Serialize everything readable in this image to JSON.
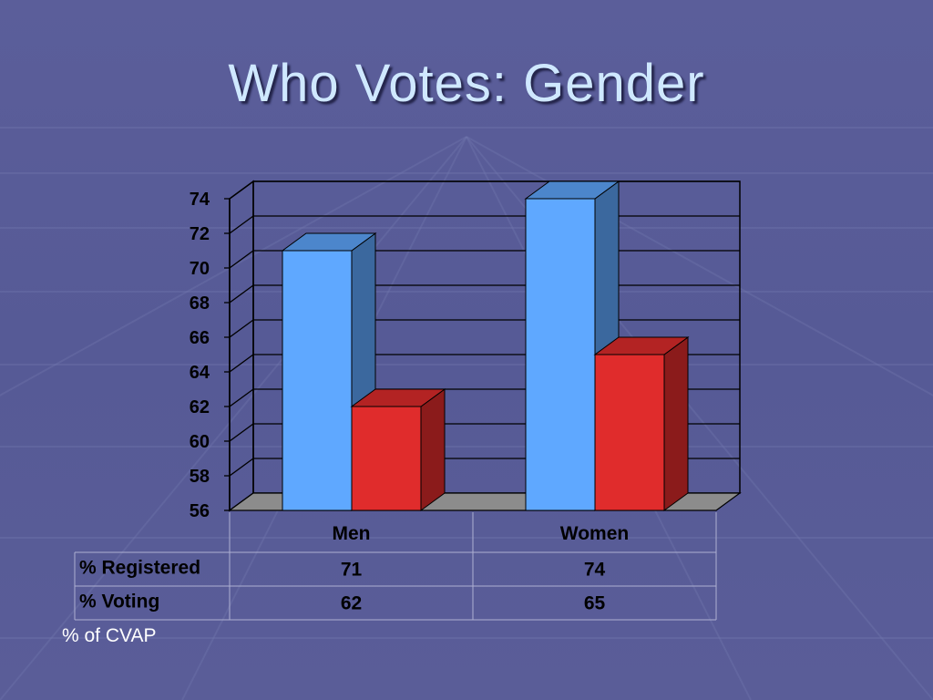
{
  "slide": {
    "title": "Who Votes:  Gender",
    "note": "% of CVAP"
  },
  "chart_data": {
    "type": "bar",
    "title": "",
    "categories": [
      "Men",
      "Women"
    ],
    "series": [
      {
        "name": "% Registered",
        "values": [
          71,
          74
        ],
        "color": "#5fa8ff"
      },
      {
        "name": "% Voting",
        "values": [
          62,
          65
        ],
        "color": "#e02c2c"
      }
    ],
    "ylim": [
      56,
      74
    ],
    "yticks": [
      56,
      58,
      60,
      62,
      64,
      66,
      68,
      70,
      72,
      74
    ],
    "grid": true,
    "style": "3d-column",
    "data_table": true
  }
}
